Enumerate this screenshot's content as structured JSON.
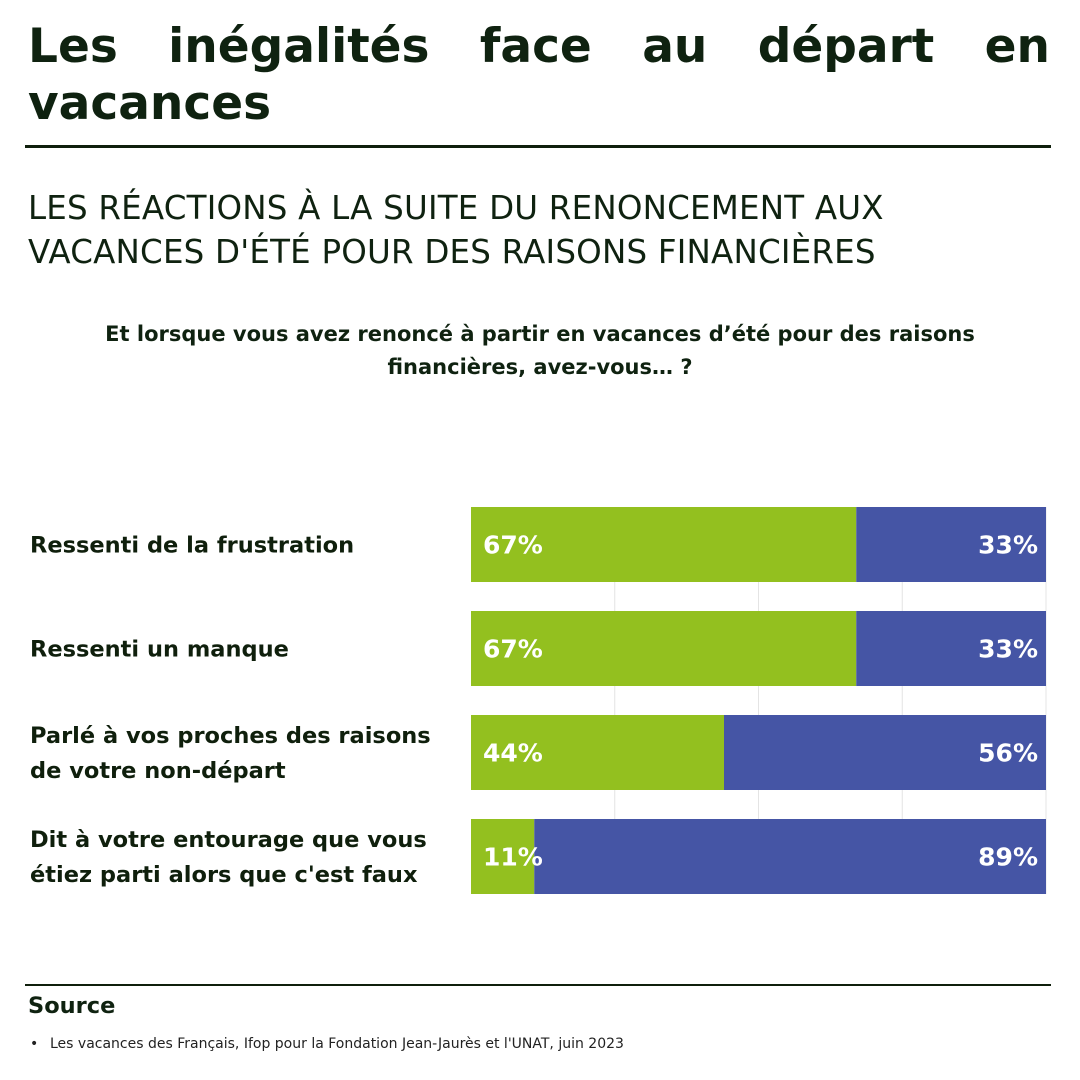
{
  "title": "Les inégalités face au départ en vacances",
  "subtitle_line1": "LES RÉACTIONS À LA SUITE DU RENONCEMENT AUX",
  "subtitle_line2": "VACANCES D'ÉTÉ POUR DES RAISONS FINANCIÈRES",
  "question_line1": "Et lorsque vous avez renoncé à partir en vacances d’été pour des raisons",
  "question_line2": "financières, avez-vous… ?",
  "source": {
    "heading": "Source",
    "items": [
      "Les vacances des Français, Ifop pour la Fondation Jean-Jaurès et l'UNAT, juin 2023"
    ]
  },
  "colors": {
    "yes": "#93c01f",
    "no": "#4555a5",
    "text": "#0f1f0c"
  },
  "chart_data": {
    "type": "bar",
    "orientation": "horizontal",
    "stacked": true,
    "xlim": [
      0,
      100
    ],
    "grid": true,
    "categories": [
      [
        "Ressenti de la frustration"
      ],
      [
        "Ressenti un manque"
      ],
      [
        "Parlé à vos proches des raisons",
        "de votre non-départ"
      ],
      [
        "Dit à votre entourage que vous",
        "étiez parti alors que c'est faux"
      ]
    ],
    "series": [
      {
        "values": [
          67,
          67,
          44,
          11
        ],
        "labels": [
          "67%",
          "67%",
          "44%",
          "11%"
        ]
      },
      {
        "values": [
          33,
          33,
          56,
          89
        ],
        "labels": [
          "33%",
          "33%",
          "56%",
          "89%"
        ]
      }
    ]
  }
}
